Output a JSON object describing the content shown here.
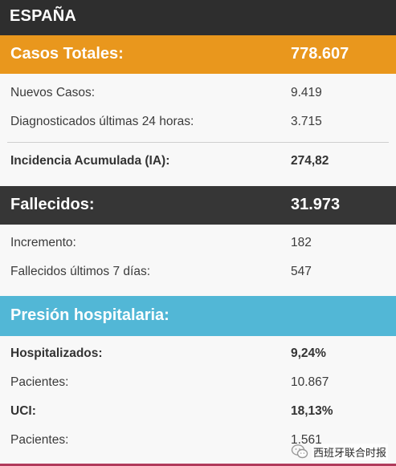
{
  "colors": {
    "header_dark": "#2e2e2e",
    "cases_orange": "#e9971d",
    "deaths_dark": "#363636",
    "hospital_blue": "#52b7d6",
    "row_background": "#f8f8f8",
    "text": "#3b3b3b"
  },
  "header": {
    "title": "ESPAÑA"
  },
  "cases": {
    "label": "Casos Totales:",
    "value": "778.607",
    "rows": [
      {
        "label": "Nuevos Casos:",
        "value": "9.419"
      },
      {
        "label": "Diagnosticados últimas 24 horas:",
        "value": "3.715"
      }
    ],
    "incidence": {
      "label": "Incidencia Acumulada (IA):",
      "value": "274,82"
    }
  },
  "deaths": {
    "label": "Fallecidos:",
    "value": "31.973",
    "rows": [
      {
        "label": "Incremento:",
        "value": "182"
      },
      {
        "label": "Fallecidos últimos 7 días:",
        "value": "547"
      }
    ]
  },
  "hospital": {
    "label": "Presión hospitalaria:",
    "rows": [
      {
        "label": "Hospitalizados:",
        "value": "9,24%"
      },
      {
        "label": "Pacientes:",
        "value": "10.867"
      },
      {
        "label": "UCI:",
        "value": "18,13%"
      },
      {
        "label": "Pacientes:",
        "value": "1.561"
      }
    ]
  },
  "watermark": {
    "icon": "wechat-icon",
    "text": "西班牙联合时报"
  }
}
